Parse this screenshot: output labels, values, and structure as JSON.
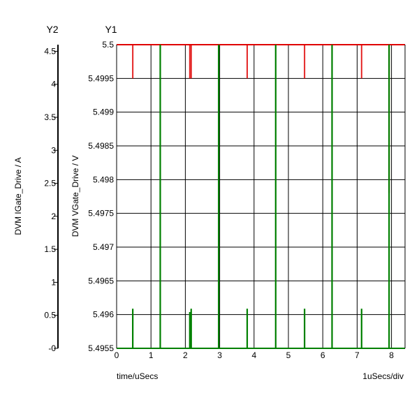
{
  "chart_data": {
    "type": "line",
    "title": "",
    "y1_label": "Y1",
    "y2_label": "Y2",
    "y1_axis_title": "DVM VGate_Drive / V",
    "y2_axis_title": "DVM IGate_Drive / A",
    "xlabel": "time/uSecs",
    "x_scale_note": "1uSecs/div",
    "xlim": [
      0,
      8.3
    ],
    "x_ticks": [
      "0",
      "1",
      "2",
      "3",
      "4",
      "5",
      "6",
      "7",
      "8"
    ],
    "y1lim": [
      5.4955,
      5.5
    ],
    "y1_ticks": [
      "5.4955",
      "5.496",
      "5.4965",
      "5.497",
      "5.4975",
      "5.498",
      "5.4985",
      "5.499",
      "5.4995",
      "5.5"
    ],
    "y2lim": [
      0,
      4.6
    ],
    "y2_ticks": [
      "-0",
      "0.5",
      "1",
      "1.5",
      "2",
      "2.5",
      "3",
      "3.5",
      "4",
      "4.5"
    ],
    "grid": true,
    "series": [
      {
        "color": "#e00000",
        "axis": "y1",
        "baseline": 5.5,
        "dips": [
          {
            "x": 0.47,
            "to": 5.4995
          },
          {
            "x": 2.13,
            "to": 5.4995
          },
          {
            "x": 2.17,
            "to": 5.4995
          },
          {
            "x": 3.8,
            "to": 5.4995
          },
          {
            "x": 5.47,
            "to": 5.4995
          },
          {
            "x": 6.27,
            "to": 5.499
          },
          {
            "x": 7.13,
            "to": 5.4995
          },
          {
            "x": 7.93,
            "to": 5.4978
          }
        ]
      },
      {
        "color": "#008000",
        "axis": "y2",
        "baseline": 0,
        "spikes": [
          {
            "x": 0.47,
            "to": 0.6
          },
          {
            "x": 1.27,
            "to": 4.6
          },
          {
            "x": 2.13,
            "to": 0.55
          },
          {
            "x": 2.17,
            "to": 0.6
          },
          {
            "x": 2.97,
            "to": 4.6
          },
          {
            "x": 3.8,
            "to": 0.6
          },
          {
            "x": 4.63,
            "to": 4.6
          },
          {
            "x": 5.47,
            "to": 0.6
          },
          {
            "x": 6.27,
            "to": 4.6
          },
          {
            "x": 7.13,
            "to": 0.6
          },
          {
            "x": 7.93,
            "to": 4.6
          }
        ]
      }
    ]
  }
}
